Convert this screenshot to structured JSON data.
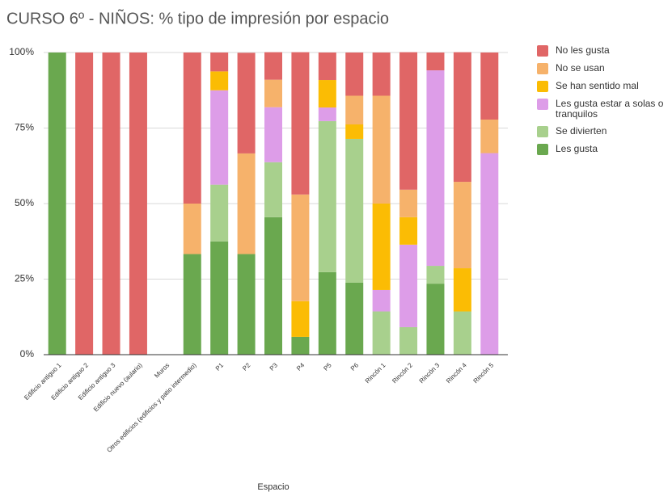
{
  "chart_data": {
    "type": "stacked_bar",
    "title": "CURSO 6º - NIÑOS: % tipo de impresión por espacio",
    "xlabel": "Espacio",
    "categories": [
      "Edificio antiguo 1",
      "Edificio antiguo 2",
      "Edificio antiguo 3",
      "Edificio nuevo (aulario)",
      "Muros",
      "Otros edificios (edificios y patio intermedio)",
      "P1",
      "P2",
      "P3",
      "P4",
      "P5",
      "P6",
      "Rincón 1",
      "Rincón 2",
      "Rincón 3",
      "Rincón 4",
      "Rincón 5"
    ],
    "series": [
      {
        "name": "Les gusta",
        "color": "#6aa84f",
        "values": [
          100,
          0,
          0,
          0,
          0,
          33.3,
          37.5,
          33.3,
          45.5,
          5.9,
          27.3,
          23.8,
          0,
          0,
          23.5,
          0,
          0
        ]
      },
      {
        "name": "Se divierten",
        "color": "#a8d08d",
        "values": [
          0,
          0,
          0,
          0,
          0,
          0,
          18.75,
          0,
          18.2,
          0,
          50,
          47.6,
          14.3,
          9.1,
          5.9,
          14.3,
          0
        ]
      },
      {
        "name": "Les gusta estar a solas o tranquilos",
        "color": "#dd9de8",
        "values": [
          0,
          0,
          0,
          0,
          0,
          0,
          31.25,
          0,
          18.2,
          0,
          4.5,
          0,
          7.1,
          27.3,
          64.7,
          0,
          66.7
        ]
      },
      {
        "name": "Se han sentido mal",
        "color": "#fbbc04",
        "values": [
          0,
          0,
          0,
          0,
          0,
          0,
          6.25,
          0,
          0,
          11.8,
          9.1,
          4.8,
          28.6,
          9.1,
          0,
          14.3,
          0
        ]
      },
      {
        "name": "No se usan",
        "color": "#f6b26b",
        "values": [
          0,
          0,
          0,
          0,
          0,
          16.7,
          0,
          33.3,
          9.1,
          35.3,
          0,
          9.5,
          35.7,
          9.1,
          0,
          28.6,
          11.1
        ]
      },
      {
        "name": "No les gusta",
        "color": "#e06666",
        "values": [
          0,
          100,
          100,
          100,
          0,
          50,
          6.25,
          33.3,
          9.1,
          47.1,
          9.1,
          14.3,
          14.3,
          45.5,
          5.9,
          42.9,
          22.2
        ]
      }
    ],
    "ylim": [
      0,
      100
    ],
    "yticks": [
      {
        "value": 0,
        "label": "0%"
      },
      {
        "value": 25,
        "label": "25%"
      },
      {
        "value": 50,
        "label": "50%"
      },
      {
        "value": 75,
        "label": "75%"
      },
      {
        "value": 100,
        "label": "100%"
      }
    ],
    "grid": true,
    "legend": "right"
  }
}
